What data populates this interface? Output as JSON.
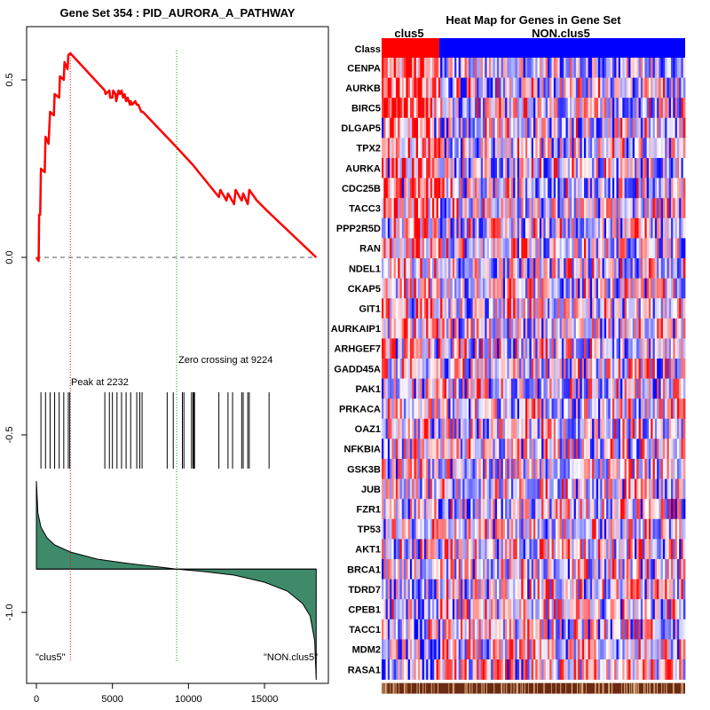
{
  "chart_data": [
    {
      "type": "line",
      "name": "enrichment-plot",
      "title": "Gene Set  354 : PID_AURORA_A_PATHWAY",
      "xlim": [
        0,
        18500
      ],
      "ylim": [
        -1.2,
        0.65
      ],
      "x_ticks": [
        0,
        5000,
        10000,
        15000
      ],
      "x_tick_labels": [
        "0",
        "5000",
        "10000",
        "15000"
      ],
      "y_ticks": [
        0.5,
        0.0,
        -0.5,
        -1.0
      ],
      "y_tick_labels": [
        "0.5",
        "0.0",
        "-0.5",
        "-1.0"
      ],
      "running_es": {
        "x": [
          0,
          150,
          180,
          250,
          300,
          550,
          600,
          800,
          900,
          1150,
          1200,
          1500,
          1550,
          1800,
          1850,
          2050,
          2100,
          2232,
          4500,
          4550,
          4800,
          4850,
          5000,
          5050,
          5200,
          5250,
          5300,
          5400,
          5500,
          5600,
          5700,
          5800,
          5900,
          6000,
          6150,
          6200,
          6300,
          6500,
          6600,
          6700,
          6800,
          6900,
          7000,
          9224,
          10300,
          12000,
          12100,
          12500,
          12600,
          13000,
          13100,
          13500,
          13600,
          13900,
          14000,
          14500,
          15200,
          18400
        ],
        "y": [
          0.0,
          -0.01,
          0.12,
          0.12,
          0.25,
          0.24,
          0.34,
          0.32,
          0.41,
          0.4,
          0.46,
          0.45,
          0.51,
          0.5,
          0.55,
          0.53,
          0.57,
          0.575,
          0.47,
          0.46,
          0.47,
          0.45,
          0.45,
          0.47,
          0.46,
          0.44,
          0.45,
          0.47,
          0.46,
          0.47,
          0.45,
          0.46,
          0.44,
          0.45,
          0.43,
          0.44,
          0.43,
          0.44,
          0.43,
          0.43,
          0.42,
          0.41,
          0.41,
          0.31,
          0.26,
          0.17,
          0.19,
          0.16,
          0.18,
          0.15,
          0.19,
          0.16,
          0.18,
          0.15,
          0.19,
          0.16,
          0.13,
          0.0
        ]
      },
      "hit_positions": [
        300,
        600,
        900,
        1200,
        1500,
        1800,
        2100,
        2200,
        4500,
        4800,
        5000,
        5300,
        5600,
        5900,
        6200,
        6600,
        6800,
        6950,
        8600,
        9000,
        9600,
        9700,
        10200,
        10300,
        10350,
        10400,
        12000,
        12600,
        12900,
        13500,
        13600,
        13900,
        14000,
        15300
      ],
      "ranked_metric": {
        "x": [
          0,
          100,
          300,
          700,
          1200,
          2232,
          4000,
          6000,
          8000,
          9224,
          11000,
          13000,
          15000,
          16500,
          17500,
          18000,
          18300,
          18400
        ],
        "y": [
          -0.63,
          -0.72,
          -0.76,
          -0.79,
          -0.81,
          -0.83,
          -0.85,
          -0.862,
          -0.872,
          -0.878,
          -0.885,
          -0.895,
          -0.915,
          -0.94,
          -0.975,
          -1.01,
          -1.08,
          -1.19
        ]
      },
      "zero_line_y": -0.878,
      "peak": {
        "x": 2232,
        "label": "Peak at 2232"
      },
      "zero_crossing": {
        "x": 9224,
        "label": "Zero crossing at 9224"
      },
      "left_label": "\"clus5\"",
      "right_label": "\"NON.clus5\"",
      "colors": {
        "es_line": "#ff0000",
        "metric_fill": "#3e8a6b",
        "peak_line": "#ff0000",
        "zero_line": "#00aa00",
        "hit": "#000000"
      }
    },
    {
      "type": "heatmap",
      "name": "gene-heatmap",
      "title": "Heat Map for Genes in Gene Set",
      "class_row_label": "Class",
      "classes": [
        {
          "name": "clus5",
          "fraction": 0.19,
          "color": "#ff0000"
        },
        {
          "name": "NON.clus5",
          "fraction": 0.81,
          "color": "#0000ff"
        }
      ],
      "genes": [
        "CENPA",
        "AURKB",
        "BIRC5",
        "DLGAP5",
        "TPX2",
        "AURKA",
        "CDC25B",
        "TACC3",
        "PPP2R5D",
        "RAN",
        "NDEL1",
        "CKAP5",
        "GIT1",
        "AURKAIP1",
        "ARHGEF7",
        "GADD45A",
        "PAK1",
        "PRKACA",
        "OAZ1",
        "NFKBIA",
        "GSK3B",
        "JUB",
        "FZR1",
        "TP53",
        "AKT1",
        "BRCA1",
        "TDRD7",
        "CPEB1",
        "TACC1",
        "MDM2",
        "RASA1"
      ],
      "row_bias": [
        0.55,
        0.5,
        0.5,
        0.45,
        0.45,
        0.42,
        0.42,
        0.38,
        0.3,
        0.3,
        0.25,
        0.2,
        0.18,
        0.15,
        0.12,
        0.1,
        0.08,
        0.06,
        0.04,
        0.02,
        0.0,
        -0.02,
        -0.05,
        -0.08,
        -0.1,
        -0.12,
        -0.15,
        -0.18,
        -0.2,
        -0.25,
        -0.3
      ],
      "colors": {
        "high": "#ff0000",
        "mid": "#ffffff",
        "low": "#0000ff"
      }
    }
  ]
}
